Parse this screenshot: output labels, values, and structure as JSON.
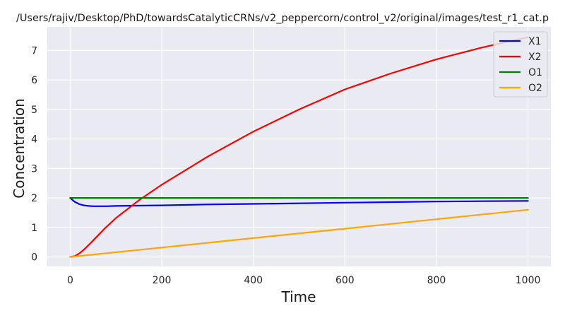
{
  "chart_data": {
    "type": "line",
    "title": "/Users/rajiv/Desktop/PhD/towardsCatalyticCRNs/v2_peppercorn/control_v2/original/images/test_r1_cat.p",
    "xlabel": "Time",
    "ylabel": "Concentration",
    "xlim": [
      -50,
      1050
    ],
    "ylim": [
      -0.32,
      7.8
    ],
    "xticks": [
      0,
      200,
      400,
      600,
      800,
      1000
    ],
    "yticks": [
      0,
      1,
      2,
      3,
      4,
      5,
      6,
      7
    ],
    "grid": true,
    "legend_position": "top-right",
    "series": [
      {
        "name": "X1",
        "color": "#0000ff",
        "x": [
          0,
          5,
          10,
          20,
          30,
          40,
          50,
          60,
          80,
          100,
          150,
          200,
          300,
          400,
          500,
          600,
          700,
          800,
          900,
          1000
        ],
        "y": [
          2.0,
          1.93,
          1.87,
          1.79,
          1.75,
          1.73,
          1.72,
          1.72,
          1.72,
          1.73,
          1.74,
          1.75,
          1.78,
          1.8,
          1.82,
          1.84,
          1.86,
          1.88,
          1.89,
          1.9
        ]
      },
      {
        "name": "X2",
        "color": "#ff0000",
        "x": [
          0,
          10,
          20,
          30,
          40,
          50,
          75,
          100,
          150,
          200,
          300,
          400,
          500,
          600,
          700,
          800,
          900,
          1000
        ],
        "y": [
          0.0,
          0.03,
          0.12,
          0.25,
          0.4,
          0.56,
          0.96,
          1.32,
          1.92,
          2.45,
          3.4,
          4.25,
          5.0,
          5.68,
          6.22,
          6.7,
          7.1,
          7.45
        ]
      },
      {
        "name": "O1",
        "color": "#008000",
        "x": [
          0,
          1000
        ],
        "y": [
          2.0,
          2.0
        ]
      },
      {
        "name": "O2",
        "color": "#ffa500",
        "x": [
          0,
          200,
          400,
          600,
          800,
          1000
        ],
        "y": [
          0.0,
          0.32,
          0.64,
          0.96,
          1.28,
          1.6
        ]
      }
    ]
  }
}
